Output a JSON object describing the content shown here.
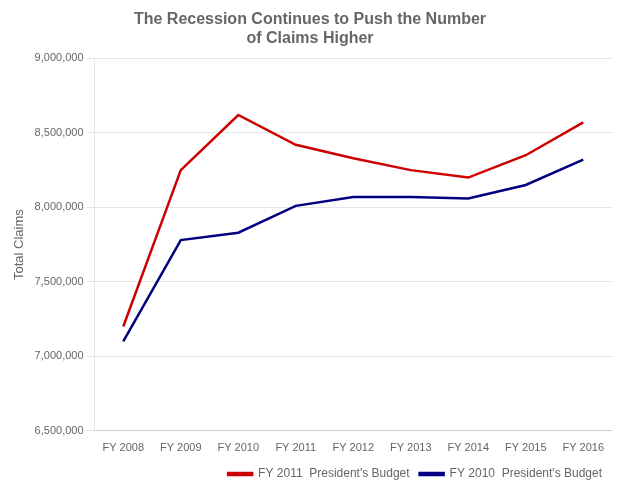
{
  "chart_data": {
    "type": "line",
    "title": "The Recession Continues to Push the Number\nof Claims Higher",
    "y_label": "Total Claims",
    "categories": [
      "FY 2008",
      "FY 2009",
      "FY 2010",
      "FY 2011",
      "FY 2012",
      "FY 2013",
      "FY 2014",
      "FY 2015",
      "FY 2016"
    ],
    "series": [
      {
        "name": "FY 2011  President's Budget",
        "color": "#cc0000",
        "values": [
          7200000,
          8250000,
          8620000,
          8420000,
          8330000,
          8250000,
          8200000,
          8350000,
          8570000
        ]
      },
      {
        "name": "FY 2010  President's Budget",
        "color": "#000080",
        "values": [
          7100000,
          7780000,
          7830000,
          8010000,
          8070000,
          8070000,
          8060000,
          8150000,
          8320000
        ]
      }
    ],
    "ylim": [
      6500000,
      9000000
    ],
    "yticks": [
      {
        "value": 6500000,
        "label": "6,500,000"
      },
      {
        "value": 7000000,
        "label": "7,000,000"
      },
      {
        "value": 7500000,
        "label": "7,500,000"
      },
      {
        "value": 8000000,
        "label": "8,000,000"
      },
      {
        "value": 8500000,
        "label": "8,500,000"
      },
      {
        "value": 9000000,
        "label": "9,000,000"
      }
    ],
    "grid": true,
    "legend": "lower right"
  }
}
